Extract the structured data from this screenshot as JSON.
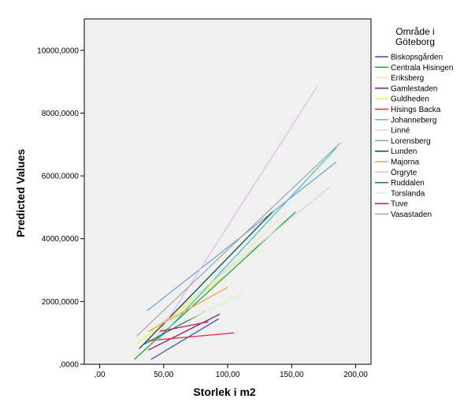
{
  "chart_data": {
    "type": "line",
    "xlabel": "Storlek i m2",
    "ylabel": "Predicted Values",
    "xlim": [
      -12,
      212
    ],
    "ylim": [
      0,
      11000000
    ],
    "xticks": [
      0,
      50,
      100,
      150,
      200
    ],
    "xtick_labels": [
      ",00",
      "50,00",
      "100,00",
      "150,00",
      "200,00"
    ],
    "yticks": [
      0,
      2000000,
      4000000,
      6000000,
      8000000,
      10000000
    ],
    "ytick_labels": [
      ",0000",
      "2000,0000",
      "4000,0000",
      "6000,0000",
      "8000,0000",
      "10000,0000"
    ],
    "grid": false,
    "plot_background": "#f0f0f0",
    "legend": {
      "title": "Område i Göteborg",
      "title_lines": [
        "Område i",
        "Göteborg"
      ],
      "placement": "right"
    },
    "series": [
      {
        "name": "Biskopsgården",
        "color": "#3b4fc0",
        "x": [
          40,
          93
        ],
        "y": [
          150000,
          1450000
        ]
      },
      {
        "name": "Centrala Hisingen",
        "color": "#1fa83a",
        "x": [
          27,
          153
        ],
        "y": [
          150000,
          4850000
        ]
      },
      {
        "name": "Eriksberg",
        "color": "#efe6b3",
        "x": [
          43,
          145
        ],
        "y": [
          850000,
          4800000
        ]
      },
      {
        "name": "Gamlestaden",
        "color": "#7b1f7f",
        "x": [
          38,
          94
        ],
        "y": [
          450000,
          1600000
        ]
      },
      {
        "name": "Guldheden",
        "color": "#f0f04a",
        "x": [
          29,
          97
        ],
        "y": [
          650000,
          2800000
        ]
      },
      {
        "name": "Hisings Backa",
        "color": "#e8293a",
        "x": [
          38,
          105
        ],
        "y": [
          750000,
          1000000
        ]
      },
      {
        "name": "Johanneberg",
        "color": "#3ec7c7",
        "x": [
          45,
          185
        ],
        "y": [
          750000,
          6900000
        ]
      },
      {
        "name": "Linné",
        "color": "#d8d8d8",
        "x": [
          40,
          180
        ],
        "y": [
          1050000,
          5650000
        ]
      },
      {
        "name": "Lorensberg",
        "color": "#6ea5d8",
        "x": [
          37,
          185
        ],
        "y": [
          1700000,
          6450000
        ]
      },
      {
        "name": "Lunden",
        "color": "#0d4d33",
        "x": [
          31,
          135
        ],
        "y": [
          500000,
          4850000
        ]
      },
      {
        "name": "Majorna",
        "color": "#f6a33a",
        "x": [
          38,
          100
        ],
        "y": [
          1050000,
          2450000
        ]
      },
      {
        "name": "Örgryte",
        "color": "#e4b8f0",
        "x": [
          45,
          170
        ],
        "y": [
          900000,
          8850000
        ]
      },
      {
        "name": "Ruddalen",
        "color": "#2a6b7a",
        "x": [
          33,
          83
        ],
        "y": [
          600000,
          1700000
        ]
      },
      {
        "name": "Torslanda",
        "color": "#d8f5cc",
        "x": [
          60,
          112
        ],
        "y": [
          1250000,
          2250000
        ]
      },
      {
        "name": "Tuve",
        "color": "#c8204a",
        "x": [
          47,
          85
        ],
        "y": [
          1050000,
          1350000
        ]
      },
      {
        "name": "Vasastaden",
        "color": "#a8a8a8",
        "x": [
          29,
          188
        ],
        "y": [
          900000,
          7050000
        ]
      }
    ]
  }
}
